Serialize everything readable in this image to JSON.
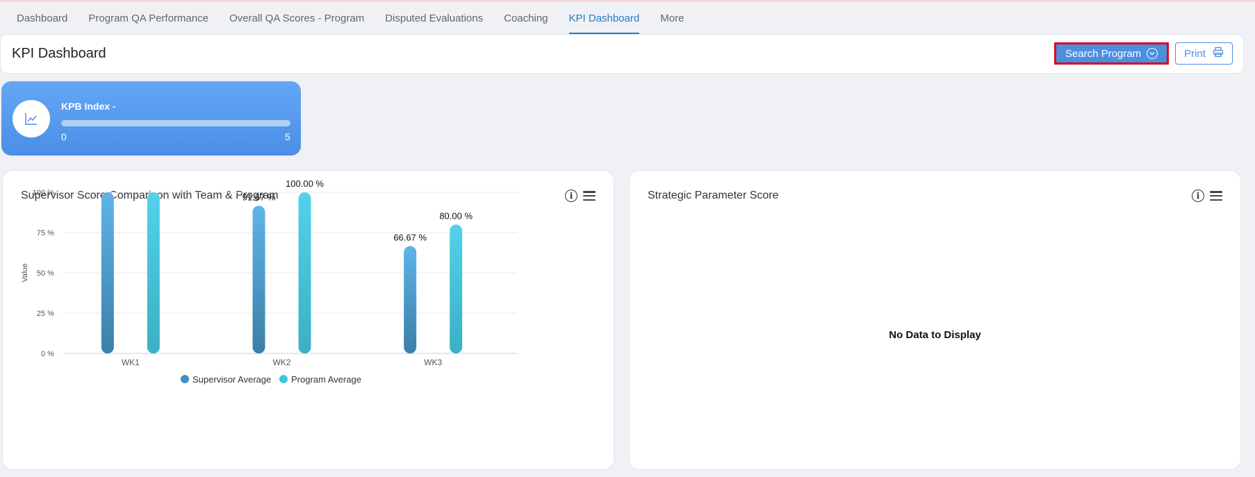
{
  "nav": {
    "tabs": [
      {
        "label": "Dashboard",
        "active": false
      },
      {
        "label": "Program QA Performance",
        "active": false
      },
      {
        "label": "Overall QA Scores - Program",
        "active": false
      },
      {
        "label": "Disputed Evaluations",
        "active": false
      },
      {
        "label": "Coaching",
        "active": false
      },
      {
        "label": "KPI Dashboard",
        "active": true
      },
      {
        "label": "More",
        "active": false
      }
    ]
  },
  "header": {
    "title": "KPI Dashboard",
    "search_label": "Search Program",
    "print_label": "Print"
  },
  "kpb": {
    "title": "KPB Index -",
    "min": "0",
    "max": "5",
    "progress": 0
  },
  "supervisor_panel": {
    "title": "Supervisor Score Comparison with Team & Program"
  },
  "strategic_panel": {
    "title": "Strategic Parameter Score",
    "empty_text": "No Data to Display"
  },
  "chart_data": {
    "type": "bar",
    "title": "Supervisor Score Comparison with Team & Program",
    "xlabel": "",
    "ylabel": "Value",
    "categories": [
      "WK1",
      "WK2",
      "WK3"
    ],
    "ylim": [
      0,
      100
    ],
    "yticks": [
      "0 %",
      "25 %",
      "50 %",
      "75 %",
      "100 %"
    ],
    "ytick_values": [
      0,
      25,
      50,
      75,
      100
    ],
    "grid": true,
    "legend": "bottom-center",
    "series": [
      {
        "name": "Supervisor Average",
        "values": [
          100,
          91.67,
          66.67
        ],
        "labels": [
          "",
          "91.67 %",
          "66.67 %"
        ],
        "color": "#3f8fc4"
      },
      {
        "name": "Program Average",
        "values": [
          100,
          100,
          80
        ],
        "labels": [
          "",
          "100.00 %",
          "80.00 %"
        ],
        "color": "#44c4dc"
      }
    ]
  }
}
